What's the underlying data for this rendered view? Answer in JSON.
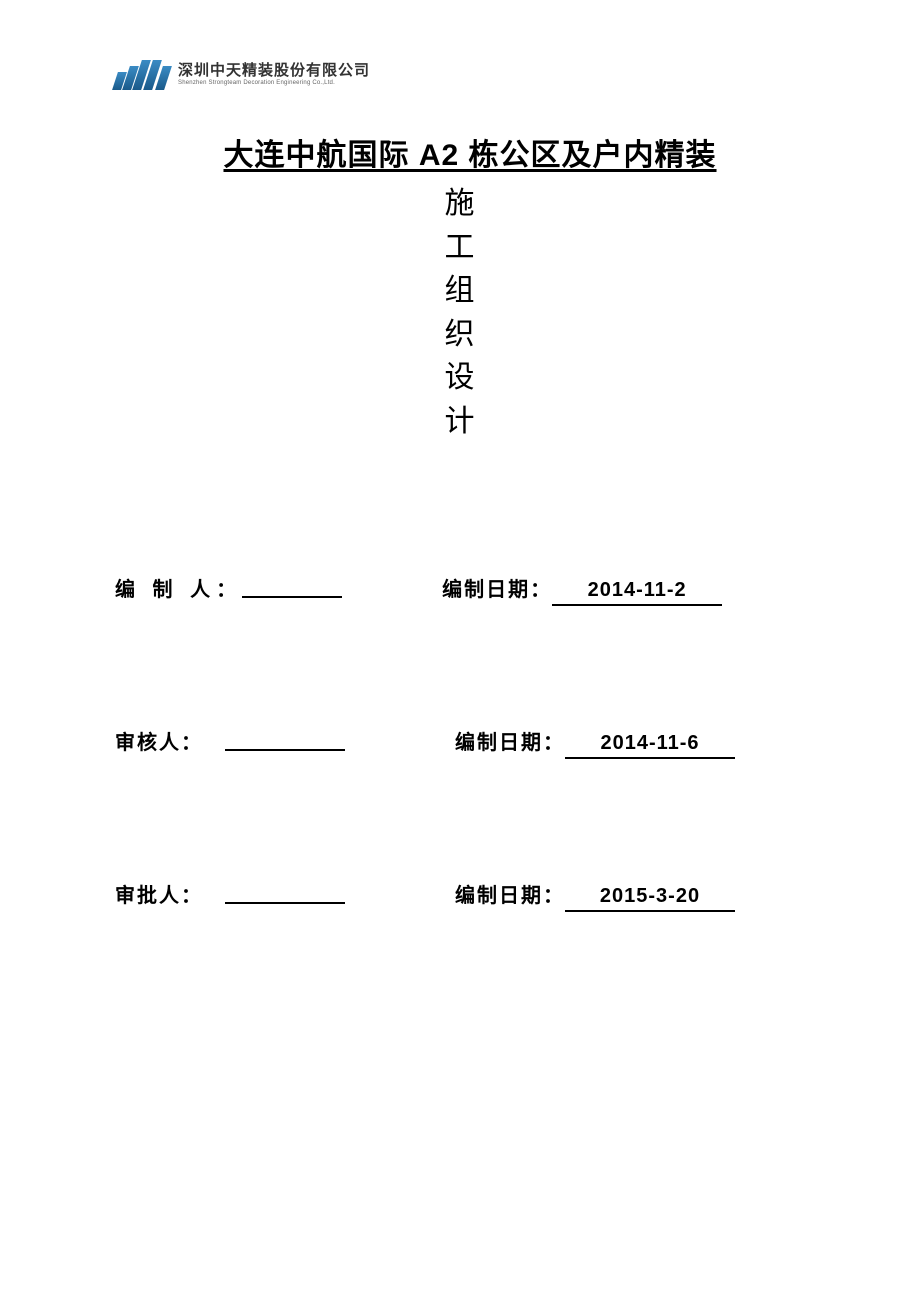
{
  "logo": {
    "company_cn": "深圳中天精装股份有限公司",
    "company_en": "Shenzhen Strongteam Decoration Engineering Co.,Ltd."
  },
  "title": {
    "main": "大连中航国际 A2 栋公区及户内精装",
    "sub_v1": "施",
    "sub_v2": "工",
    "sub_v3": "组",
    "sub_v4": "织",
    "sub_v5": "设",
    "sub_v6": "计"
  },
  "form": {
    "row1": {
      "left_label": "编 制 人：",
      "right_label": "编制日期：",
      "date": "2014-11-2"
    },
    "row2": {
      "left_label": "审核人：",
      "right_label": "编制日期：",
      "date": "2014-11-6"
    },
    "row3": {
      "left_label": "审批人：",
      "right_label": "编制日期：",
      "date": "2015-3-20"
    }
  },
  "colors": {
    "text": "#000000",
    "background": "#ffffff",
    "logo_blue_top": "#3a8bc4",
    "logo_blue_bottom": "#1a5a8a",
    "logo_text_sub": "#666666"
  },
  "typography": {
    "title_fontsize": 30,
    "body_fontsize": 20,
    "logo_cn_fontsize": 15,
    "logo_en_fontsize": 6
  }
}
